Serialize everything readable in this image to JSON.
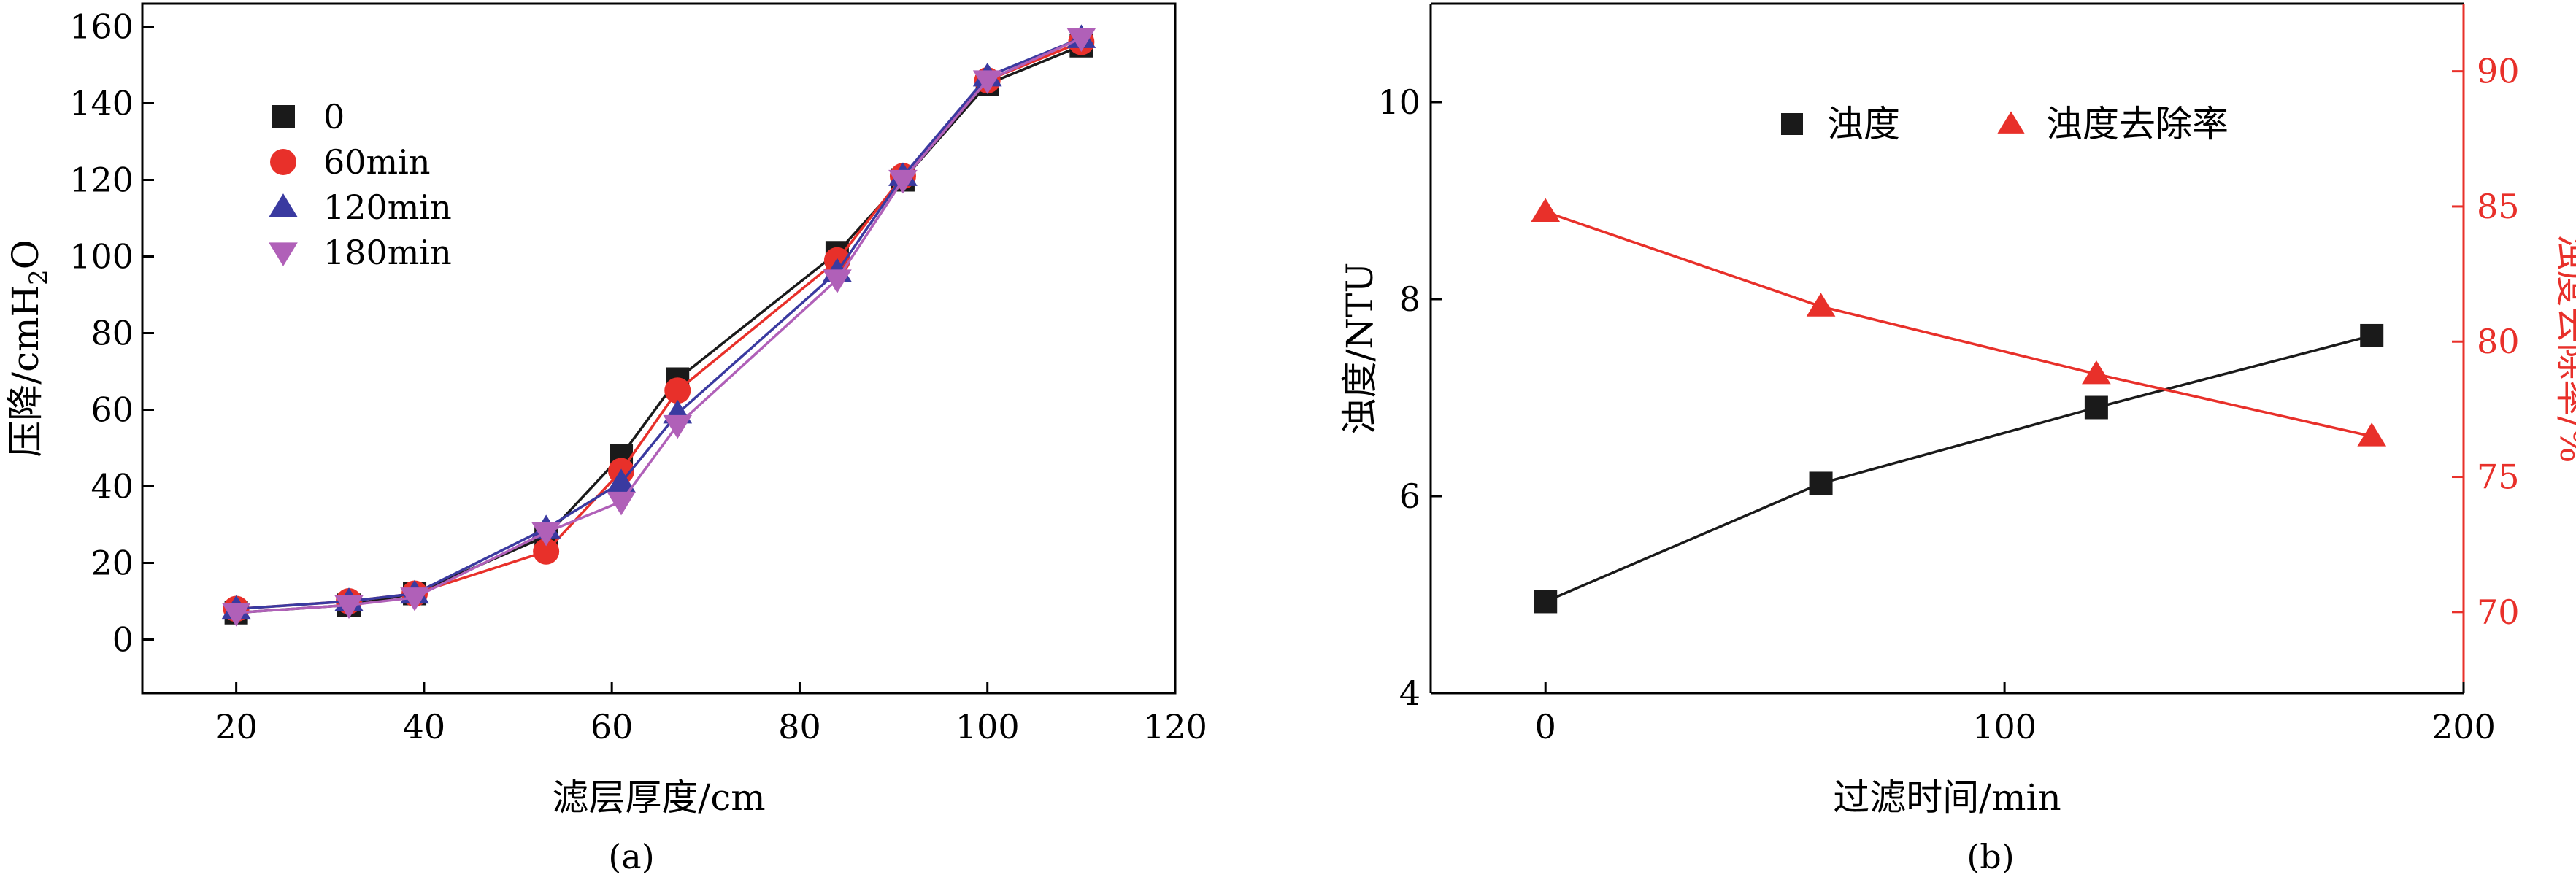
{
  "chart_data": [
    {
      "panel": "(a)",
      "type": "line",
      "xlabel": "滤层厚度/cm",
      "ylabel_main": "压降/cmH",
      "ylabel_sub": "2",
      "ylabel_tail": "O",
      "xlim": [
        10,
        120
      ],
      "ylim": [
        -14,
        166
      ],
      "xticks": [
        20,
        40,
        60,
        80,
        100,
        120
      ],
      "yticks": [
        0,
        20,
        40,
        60,
        80,
        100,
        120,
        140,
        160
      ],
      "x": [
        20,
        32,
        39,
        53,
        61,
        67,
        84,
        91,
        100,
        110
      ],
      "series": [
        {
          "name": "0",
          "marker": "square",
          "color": "#1a1a1a",
          "values": [
            7,
            9,
            12,
            27,
            48,
            68,
            101,
            120,
            145,
            155
          ]
        },
        {
          "name": "60min",
          "marker": "circle",
          "color": "#e8302a",
          "values": [
            8,
            10,
            12,
            23,
            44,
            65,
            99,
            121,
            146,
            156
          ]
        },
        {
          "name": "120min",
          "marker": "triangle-up",
          "color": "#3a3aa0",
          "values": [
            8,
            10,
            12,
            29,
            41,
            59,
            96,
            121,
            147,
            157
          ]
        },
        {
          "name": "180min",
          "marker": "triangle-down",
          "color": "#b060b8",
          "values": [
            7,
            9,
            11,
            28,
            36,
            56,
            94,
            120,
            146,
            157
          ]
        }
      ]
    },
    {
      "panel": "(b)",
      "type": "line",
      "xlabel": "过滤时间/min",
      "ylabel_left": "浊度/NTU",
      "ylabel_right": "浊度去除率/%",
      "x": [
        0,
        60,
        120,
        180
      ],
      "xlim": [
        -25,
        200
      ],
      "xticks": [
        0,
        100,
        200
      ],
      "ylim_left": [
        4,
        11
      ],
      "yticks_left": [
        4,
        6,
        8,
        10
      ],
      "ylim_right": [
        67,
        92.5
      ],
      "yticks_right": [
        70,
        75,
        80,
        85,
        90
      ],
      "series": [
        {
          "name": "浊度",
          "axis": "left",
          "marker": "square",
          "color": "#1a1a1a",
          "values": [
            4.93,
            6.13,
            6.9,
            7.63
          ]
        },
        {
          "name": "浊度去除率",
          "axis": "right",
          "marker": "triangle-up",
          "color": "#e8302a",
          "values": [
            84.8,
            81.3,
            78.8,
            76.5
          ]
        }
      ]
    }
  ]
}
